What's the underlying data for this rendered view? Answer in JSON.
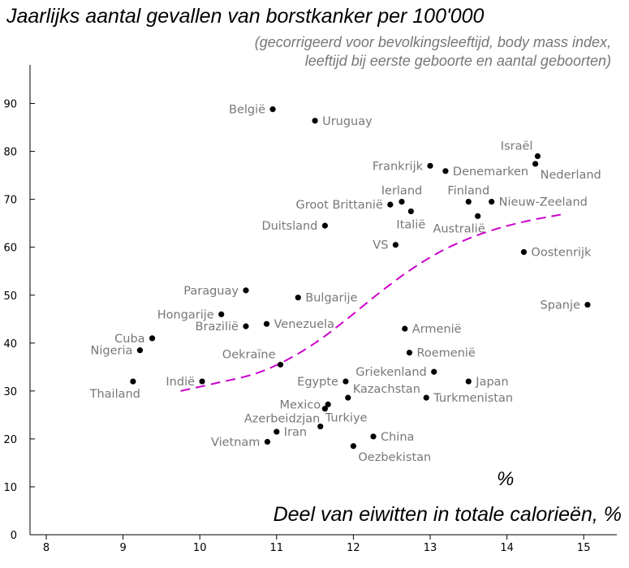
{
  "chart_data": {
    "type": "scatter",
    "title": "Jaarlijks aantal gevallen van borstkanker per 100'000",
    "subtitle_lines": [
      "(gecorrigeerd voor bevolkingsleeftijd, body mass index,",
      "leeftijd bij eerste geboorte en aantal geboorten)"
    ],
    "xlabel": "Deel van eiwitten in totale calorieën, %",
    "x_unit_mark": "%",
    "ylabel": "",
    "xlim": [
      7.75,
      15.5
    ],
    "ylim": [
      0,
      98
    ],
    "x_ticks": [
      8,
      9,
      10,
      11,
      12,
      13,
      14,
      15
    ],
    "y_ticks": [
      0,
      10,
      20,
      30,
      40,
      50,
      60,
      70,
      80,
      90
    ],
    "grid": false,
    "point_color": "#000000",
    "label_color": "#777777",
    "trend_color": "#cc00cc",
    "points": [
      {
        "name": "België",
        "x": 10.95,
        "y": 88.8,
        "label_side": "left"
      },
      {
        "name": "Uruguay",
        "x": 11.5,
        "y": 86.4,
        "label_side": "right"
      },
      {
        "name": "Israël",
        "x": 14.4,
        "y": 79.0,
        "label_side": "left-above"
      },
      {
        "name": "Nederland",
        "x": 14.37,
        "y": 77.4,
        "label_side": "right-below"
      },
      {
        "name": "Frankrijk",
        "x": 13.0,
        "y": 77.0,
        "label_side": "left"
      },
      {
        "name": "Denemarken",
        "x": 13.2,
        "y": 75.9,
        "label_side": "right"
      },
      {
        "name": "Ierland",
        "x": 12.63,
        "y": 69.5,
        "label_side": "above"
      },
      {
        "name": "Groot Brittanië",
        "x": 12.48,
        "y": 68.9,
        "label_side": "left"
      },
      {
        "name": "Italië",
        "x": 12.75,
        "y": 67.5,
        "label_side": "below"
      },
      {
        "name": "Finland",
        "x": 13.5,
        "y": 69.5,
        "label_side": "above"
      },
      {
        "name": "Nieuw-Zeeland",
        "x": 13.8,
        "y": 69.5,
        "label_side": "right"
      },
      {
        "name": "Australië",
        "x": 13.62,
        "y": 66.5,
        "label_side": "below-left"
      },
      {
        "name": "Duitsland",
        "x": 11.63,
        "y": 64.5,
        "label_side": "left"
      },
      {
        "name": "VS",
        "x": 12.55,
        "y": 60.5,
        "label_side": "left"
      },
      {
        "name": "Oostenrijk",
        "x": 14.22,
        "y": 59.0,
        "label_side": "right"
      },
      {
        "name": "Paraguay",
        "x": 10.6,
        "y": 51.0,
        "label_side": "left"
      },
      {
        "name": "Bulgarije",
        "x": 11.28,
        "y": 49.5,
        "label_side": "right"
      },
      {
        "name": "Spanje",
        "x": 15.05,
        "y": 48.0,
        "label_side": "left"
      },
      {
        "name": "Hongarije",
        "x": 10.28,
        "y": 46.0,
        "label_side": "left"
      },
      {
        "name": "Venezuela",
        "x": 10.87,
        "y": 44.0,
        "label_side": "right"
      },
      {
        "name": "Brazilië",
        "x": 10.6,
        "y": 43.5,
        "label_side": "left"
      },
      {
        "name": "Armenië",
        "x": 12.67,
        "y": 43.0,
        "label_side": "right"
      },
      {
        "name": "Cuba",
        "x": 9.38,
        "y": 41.0,
        "label_side": "left"
      },
      {
        "name": "Nigeria",
        "x": 9.22,
        "y": 38.5,
        "label_side": "left"
      },
      {
        "name": "Roemenië",
        "x": 12.73,
        "y": 38.0,
        "label_side": "right"
      },
      {
        "name": "Oekraïne",
        "x": 11.05,
        "y": 35.5,
        "label_side": "left-above"
      },
      {
        "name": "Griekenland",
        "x": 13.05,
        "y": 34.0,
        "label_side": "left"
      },
      {
        "name": "Thailand",
        "x": 9.13,
        "y": 32.0,
        "label_side": "below-left"
      },
      {
        "name": "Indië",
        "x": 10.03,
        "y": 32.0,
        "label_side": "left"
      },
      {
        "name": "Egypte",
        "x": 11.9,
        "y": 32.0,
        "label_side": "left"
      },
      {
        "name": "Japan",
        "x": 13.5,
        "y": 32.0,
        "label_side": "right"
      },
      {
        "name": "Kazachstan",
        "x": 11.93,
        "y": 28.6,
        "label_side": "right-above"
      },
      {
        "name": "Turkmenistan",
        "x": 12.95,
        "y": 28.6,
        "label_side": "right"
      },
      {
        "name": "Mexico",
        "x": 11.67,
        "y": 27.2,
        "label_side": "left"
      },
      {
        "name": "Azerbeidzjan",
        "x": 11.63,
        "y": 26.3,
        "label_side": "left-below"
      },
      {
        "name": "Turkiye",
        "x": 11.57,
        "y": 22.6,
        "label_side": "right-above"
      },
      {
        "name": "Iran",
        "x": 11.0,
        "y": 21.5,
        "label_side": "right"
      },
      {
        "name": "China",
        "x": 12.26,
        "y": 20.5,
        "label_side": "right"
      },
      {
        "name": "Vietnam",
        "x": 10.88,
        "y": 19.4,
        "label_side": "left"
      },
      {
        "name": "Oezbekistan",
        "x": 12.0,
        "y": 18.5,
        "label_side": "right-below"
      }
    ],
    "trend_line": {
      "x": [
        9.75,
        10.2,
        10.7,
        11.1,
        11.5,
        11.9,
        12.3,
        12.7,
        13.1,
        13.5,
        13.9,
        14.3,
        14.7
      ],
      "y": [
        30.0,
        31.6,
        33.5,
        36.2,
        40.0,
        44.8,
        50.0,
        54.8,
        58.8,
        61.8,
        64.0,
        65.6,
        66.8
      ]
    }
  }
}
